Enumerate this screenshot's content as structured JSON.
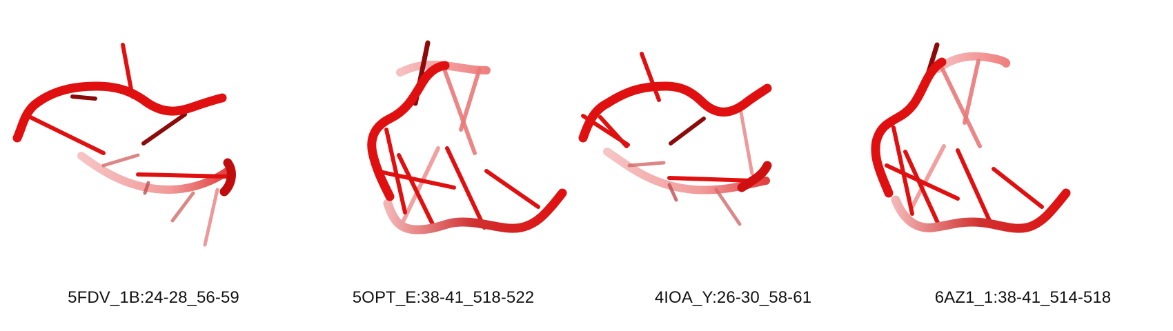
{
  "colors": {
    "strand": "#e01010",
    "strand_dark": "#8c0a0a",
    "strand_faded": "#f2a3a3",
    "background": "#ffffff"
  },
  "panels": [
    {
      "label": "5FDV_1B:24-28_56-59",
      "style": "open-loop"
    },
    {
      "label": "5OPT_E:38-41_518-522",
      "style": "hairpin"
    },
    {
      "label": "4IOA_Y:26-30_58-61",
      "style": "open-loop"
    },
    {
      "label": "6AZ1_1:38-41_514-518",
      "style": "hairpin"
    }
  ]
}
